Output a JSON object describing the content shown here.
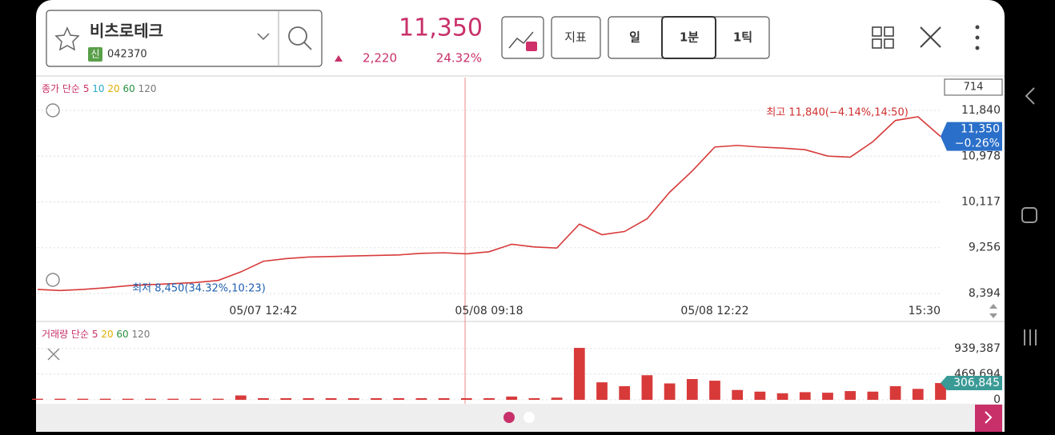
{
  "header": {
    "stock_name": "비츠로테크",
    "badge": "신",
    "code": "042370",
    "price": "11,350",
    "change": "2,220",
    "change_pct": "24.32%",
    "buttons": [
      "지표",
      "일",
      "1분",
      "1틱"
    ]
  },
  "chart_data": [
    {
      "type": "line",
      "legend": {
        "label": "종가 단순",
        "periods": [
          "5",
          "10",
          "20",
          "60",
          "120"
        ]
      },
      "box_value": "714",
      "high_label": "최고 11,840(−4.14%,14:50)",
      "low_label": "최저 8,450(34.32%,10:23)",
      "price_tag": {
        "price": "11,350",
        "change": "−0.26%"
      },
      "categories": [
        null,
        null,
        null,
        null,
        null,
        null,
        null,
        null,
        null,
        null,
        "05/07 12:42",
        null,
        null,
        null,
        null,
        null,
        null,
        null,
        null,
        null,
        "05/08 09:18",
        null,
        null,
        null,
        null,
        null,
        null,
        null,
        null,
        null,
        "05/08 12:22",
        null,
        null,
        null,
        null,
        null,
        null,
        null,
        null,
        null,
        "15:30"
      ],
      "series": [
        {
          "color": "#d83a3a",
          "values": [
            8470,
            8450,
            8470,
            8500,
            8540,
            8560,
            8580,
            8600,
            8640,
            8800,
            9000,
            9050,
            9080,
            9090,
            9100,
            9110,
            9120,
            9150,
            9160,
            9140,
            9180,
            9320,
            9270,
            9250,
            9700,
            9500,
            9560,
            9800,
            10300,
            10700,
            11150,
            11180,
            11150,
            11130,
            11100,
            10980,
            10960,
            11250,
            11650,
            11720,
            11350
          ]
        }
      ],
      "ylim": [
        8319,
        12036
      ],
      "yticks": [
        {
          "value": 8394,
          "label": "8,394"
        },
        {
          "value": 9256,
          "label": "9,256"
        },
        {
          "value": 10117,
          "label": "10,117"
        },
        {
          "value": 10978,
          "label": "10,978"
        },
        {
          "value": 11840,
          "label": "11,840"
        }
      ],
      "grid": true
    },
    {
      "type": "bar",
      "legend": {
        "label": "거래량 단순",
        "periods": [
          "5",
          "20",
          "60",
          "120"
        ]
      },
      "current_label": "306,845",
      "series": [
        {
          "color": "#d83a3a",
          "values": [
            20000,
            20000,
            20000,
            20000,
            20000,
            20000,
            20000,
            20000,
            20000,
            80000,
            30000,
            30000,
            30000,
            30000,
            30000,
            30000,
            30000,
            30000,
            30000,
            30000,
            30000,
            60000,
            30000,
            40000,
            950000,
            320000,
            250000,
            450000,
            300000,
            380000,
            350000,
            180000,
            150000,
            120000,
            140000,
            130000,
            160000,
            150000,
            250000,
            200000,
            306845
          ]
        }
      ],
      "ylim": [
        0,
        1346000
      ],
      "yticks": [
        0,
        {
          "value": 469694,
          "label": "469,694"
        },
        {
          "value": 939387,
          "label": "939,387"
        }
      ],
      "grid": true
    }
  ]
}
